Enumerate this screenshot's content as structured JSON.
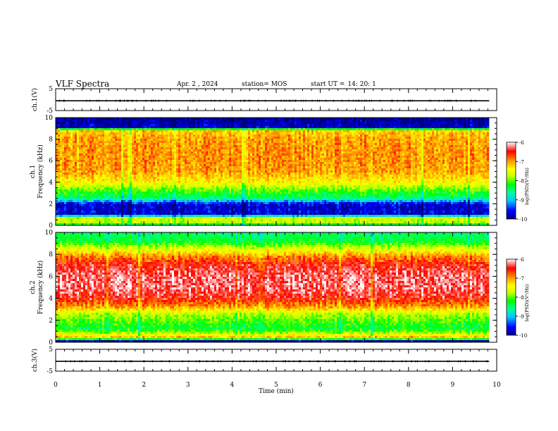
{
  "header": {
    "title": "VLF Spectra",
    "date": "Apr. 2 , 2024",
    "station": "station= MOS",
    "start_label": "start UT =",
    "start_time": "14: 20: 1"
  },
  "chart_data": [
    {
      "type": "line",
      "panel": "ch1-waveform",
      "ylabel": "ch.1(V)",
      "ylim": [
        -5,
        5
      ],
      "yticks": [
        "5",
        "-5"
      ],
      "xlim": [
        0,
        10
      ],
      "series": [
        {
          "x": [
            0,
            9.83
          ],
          "y": [
            -0.5,
            -0.5
          ]
        }
      ],
      "color": "#000000"
    },
    {
      "type": "heatmap",
      "panel": "ch1-spectrogram",
      "ylabel": "ch.1 Frequency (kHz)",
      "ylim": [
        0,
        10
      ],
      "yticks": [
        "0",
        "2",
        "4",
        "6",
        "8",
        "10"
      ],
      "xlim": [
        0,
        10
      ],
      "data_end_min": 9.83,
      "value_label": "log(PSD)(V²/Hz)",
      "value_range": [
        -10,
        -6
      ],
      "level_profile": [
        [
          0,
          -8.6
        ],
        [
          0.3,
          -7.8
        ],
        [
          0.7,
          -7.7
        ],
        [
          1.0,
          -9.8
        ],
        [
          1.25,
          -9.7
        ],
        [
          1.6,
          -9.8
        ],
        [
          2.0,
          -9.7
        ],
        [
          2.5,
          -8.6
        ],
        [
          3.0,
          -8.3
        ],
        [
          3.5,
          -7.9
        ],
        [
          4.0,
          -7.4
        ],
        [
          5.0,
          -7.0
        ],
        [
          6.0,
          -6.95
        ],
        [
          7.0,
          -6.95
        ],
        [
          8.0,
          -7.0
        ],
        [
          8.8,
          -7.2
        ],
        [
          9.1,
          -9.8
        ],
        [
          10,
          -10
        ]
      ]
    },
    {
      "type": "heatmap",
      "panel": "ch2-spectrogram",
      "ylabel": "ch.2 Frequency (kHz)",
      "ylim": [
        0,
        10
      ],
      "yticks": [
        "0",
        "2",
        "4",
        "6",
        "8",
        "10"
      ],
      "xlim": [
        0,
        10
      ],
      "data_end_min": 9.83,
      "value_label": "log(PSD)(V²/Hz)",
      "value_range": [
        -10,
        -6
      ],
      "level_profile": [
        [
          0,
          -9.8
        ],
        [
          0.15,
          -9.8
        ],
        [
          0.4,
          -7.0
        ],
        [
          0.8,
          -7.8
        ],
        [
          1.2,
          -8.4
        ],
        [
          1.8,
          -8.2
        ],
        [
          2.6,
          -7.8
        ],
        [
          3.2,
          -7.0
        ],
        [
          4.0,
          -6.5
        ],
        [
          5.0,
          -6.3
        ],
        [
          6.0,
          -6.3
        ],
        [
          7.0,
          -6.5
        ],
        [
          7.8,
          -6.9
        ],
        [
          8.5,
          -7.6
        ],
        [
          9.2,
          -8.4
        ],
        [
          10,
          -8.6
        ]
      ]
    },
    {
      "type": "line",
      "panel": "ch3-waveform",
      "ylabel": "ch.3(V)",
      "ylim": [
        -5,
        5
      ],
      "yticks": [
        "5",
        "-5"
      ],
      "xlim": [
        0,
        10
      ],
      "series": [
        {
          "x": [
            0,
            9.83
          ],
          "y": [
            -0.5,
            -0.5
          ]
        }
      ],
      "color": "#000000"
    }
  ],
  "x_axis": {
    "label": "Time (min)",
    "ticks": [
      "0",
      "1",
      "2",
      "3",
      "4",
      "5",
      "6",
      "7",
      "8",
      "9",
      "10"
    ]
  },
  "colorbars": [
    {
      "label": "log(PSD)(V²/Hz)",
      "ticks": [
        "-6",
        "-7",
        "-8",
        "-9",
        "-10"
      ]
    },
    {
      "label": "log(PSD)(V²/Hz)",
      "ticks": [
        "-6",
        "-7",
        "-8",
        "-9",
        "-10"
      ]
    }
  ],
  "colormap": [
    "#000080",
    "#0000ff",
    "#00c8ff",
    "#00ff96",
    "#00ff00",
    "#c8ff00",
    "#ffff00",
    "#ff9600",
    "#ff0000",
    "#ffffff"
  ]
}
